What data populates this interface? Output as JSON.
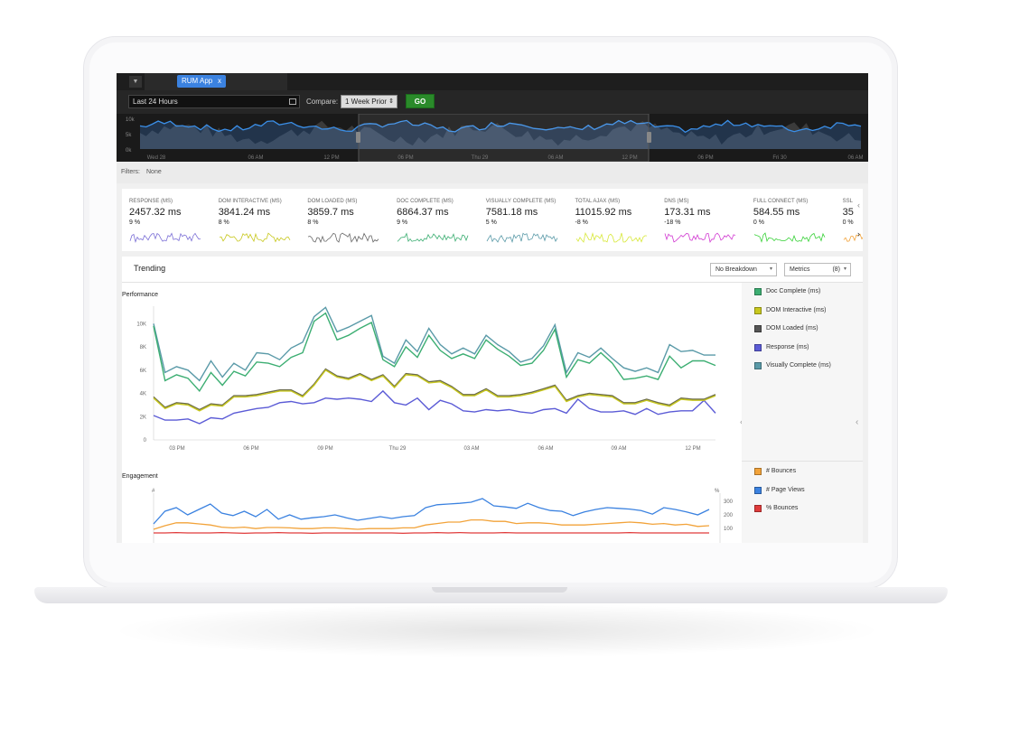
{
  "tabs": [
    {
      "label": "RUM App",
      "close": "x"
    }
  ],
  "time_range": {
    "value": "Last 24 Hours"
  },
  "compare": {
    "label": "Compare:",
    "value": "1 Week Prior"
  },
  "go_label": "GO",
  "overview": {
    "y_ticks": [
      "10k",
      "5k",
      "0k"
    ],
    "x_ticks": [
      "Wed 28",
      "06 AM",
      "12 PM",
      "06 PM",
      "Thu 29",
      "06 AM",
      "12 PM",
      "06 PM",
      "Fri 30",
      "06 AM"
    ]
  },
  "filters": {
    "label": "Filters:",
    "value": "None"
  },
  "kpis": [
    {
      "label": "RESPONSE (MS)",
      "value": "2457.32 ms",
      "change": "9 %",
      "color": "#7b6fd6"
    },
    {
      "label": "DOM INTERACTIVE (MS)",
      "value": "3841.24 ms",
      "change": "8 %",
      "color": "#c8c81e"
    },
    {
      "label": "DOM LOADED (MS)",
      "value": "3859.7 ms",
      "change": "8 %",
      "color": "#666666"
    },
    {
      "label": "DOC COMPLETE (MS)",
      "value": "6864.37 ms",
      "change": "9 %",
      "color": "#3cae72"
    },
    {
      "label": "VISUALLY COMPLETE (MS)",
      "value": "7581.18 ms",
      "change": "5 %",
      "color": "#5a9aa8"
    },
    {
      "label": "TOTAL AJAX (MS)",
      "value": "11015.92 ms",
      "change": "-8 %",
      "color": "#d8e83a"
    },
    {
      "label": "DNS (MS)",
      "value": "173.31 ms",
      "change": "-18 %",
      "color": "#d23ad2"
    },
    {
      "label": "FULL CONNECT (MS)",
      "value": "584.55 ms",
      "change": "0 %",
      "color": "#3ad23a"
    },
    {
      "label": "SSL",
      "value": "35",
      "change": "0 %",
      "color": "#f2a33a"
    }
  ],
  "trending": {
    "title": "Trending",
    "breakdown": "No Breakdown",
    "metrics_label": "Metrics",
    "metrics_count": "(8)"
  },
  "performance": {
    "title": "Performance",
    "legend": [
      {
        "name": "Doc Complete (ms)",
        "color": "#3cae72"
      },
      {
        "name": "DOM Interactive (ms)",
        "color": "#c8c81e"
      },
      {
        "name": "DOM Loaded (ms)",
        "color": "#555555"
      },
      {
        "name": "Response (ms)",
        "color": "#5b5bd6"
      },
      {
        "name": "Visually Complete (ms)",
        "color": "#5a9aa8"
      }
    ]
  },
  "engagement": {
    "title": "Engagement",
    "left_unit": "#",
    "right_unit": "%",
    "legend": [
      {
        "name": "# Bounces",
        "color": "#f2a33a"
      },
      {
        "name": "# Page Views",
        "color": "#3b82e0"
      },
      {
        "name": "% Bounces",
        "color": "#e03b3b"
      }
    ]
  },
  "chart_data": [
    {
      "type": "line",
      "title": "Performance",
      "x_ticks": [
        "03 PM",
        "06 PM",
        "09 PM",
        "Thu 29",
        "03 AM",
        "06 AM",
        "09 AM",
        "12 PM"
      ],
      "y_ticks": [
        "0",
        "2K",
        "4K",
        "6K",
        "8K",
        "10K"
      ],
      "ylim": [
        0,
        11500
      ],
      "series": [
        {
          "name": "Visually Complete (ms)",
          "color": "#5a9aa8",
          "values": [
            10000,
            5800,
            6300,
            6000,
            5100,
            6800,
            5400,
            6600,
            6000,
            7500,
            7400,
            6900,
            7900,
            8400,
            10600,
            11400,
            9300,
            9700,
            10200,
            10700,
            7200,
            6600,
            8600,
            7600,
            9600,
            8200,
            7400,
            7900,
            7400,
            9000,
            8200,
            7600,
            6700,
            7000,
            8100,
            9900,
            5800,
            7500,
            7100,
            7900,
            7000,
            6200,
            5900,
            6200,
            5800,
            8200,
            7600,
            7700,
            7300,
            7300
          ]
        },
        {
          "name": "Doc Complete (ms)",
          "color": "#3cae72",
          "values": [
            9800,
            5100,
            5600,
            5300,
            4200,
            5800,
            4700,
            5900,
            5500,
            6700,
            6600,
            6300,
            7100,
            7500,
            10200,
            10900,
            8600,
            9000,
            9600,
            10100,
            6900,
            6300,
            8000,
            7100,
            9000,
            7700,
            7000,
            7400,
            7000,
            8600,
            7800,
            7200,
            6400,
            6600,
            7700,
            9500,
            5400,
            6900,
            6600,
            7500,
            6600,
            5200,
            5300,
            5500,
            5200,
            7200,
            6200,
            6800,
            6800,
            6400
          ]
        },
        {
          "name": "DOM Loaded (ms)",
          "color": "#6b6b4a",
          "values": [
            3700,
            2800,
            3200,
            3100,
            2600,
            3100,
            3000,
            3800,
            3800,
            3900,
            4100,
            4300,
            4300,
            3800,
            4800,
            6100,
            5500,
            5300,
            5700,
            5200,
            5600,
            4600,
            5700,
            5600,
            5000,
            5100,
            4600,
            3900,
            3900,
            4400,
            3800,
            3800,
            3900,
            4100,
            4400,
            4700,
            3400,
            3800,
            4000,
            3900,
            3800,
            3200,
            3200,
            3500,
            3200,
            3000,
            3600,
            3500,
            3500,
            3900
          ]
        },
        {
          "name": "Response (ms)",
          "color": "#5b5bd6",
          "values": [
            2100,
            1700,
            1700,
            1800,
            1400,
            1900,
            1800,
            2300,
            2500,
            2700,
            2800,
            3200,
            3300,
            3100,
            3200,
            3600,
            3500,
            3600,
            3500,
            3300,
            4200,
            3200,
            3000,
            3600,
            2600,
            3400,
            3100,
            2500,
            2400,
            2600,
            2500,
            2600,
            2400,
            2300,
            2600,
            2700,
            2300,
            3500,
            2700,
            2400,
            2400,
            2500,
            2200,
            2700,
            2200,
            2400,
            2500,
            2500,
            3400,
            2300
          ]
        },
        {
          "name": "DOM Interactive (ms)",
          "color": "#c8c81e",
          "values": [
            3600,
            2700,
            3100,
            3000,
            2500,
            3000,
            2900,
            3700,
            3700,
            3800,
            4000,
            4200,
            4200,
            3700,
            4700,
            6000,
            5400,
            5200,
            5600,
            5100,
            5500,
            4500,
            5600,
            5500,
            4900,
            5000,
            4500,
            3800,
            3800,
            4300,
            3700,
            3700,
            3800,
            4000,
            4300,
            4600,
            3300,
            3700,
            3900,
            3800,
            3700,
            3100,
            3100,
            3400,
            3100,
            2900,
            3500,
            3400,
            3400,
            3800
          ]
        }
      ]
    },
    {
      "type": "line",
      "title": "Engagement",
      "y2_ticks": [
        "300",
        "200",
        "100"
      ],
      "series": [
        {
          "name": "# Page Views",
          "color": "#3b82e0",
          "values": [
            55,
            90,
            100,
            80,
            95,
            110,
            85,
            78,
            90,
            75,
            95,
            68,
            80,
            68,
            72,
            75,
            80,
            72,
            65,
            70,
            75,
            70,
            75,
            78,
            100,
            108,
            110,
            112,
            115,
            125,
            105,
            102,
            98,
            112,
            100,
            92,
            90,
            78,
            88,
            95,
            100,
            98,
            96,
            92,
            82,
            100,
            95,
            88,
            80,
            95
          ]
        },
        {
          "name": "# Bounces",
          "color": "#f2a33a",
          "values": [
            40,
            50,
            58,
            58,
            55,
            52,
            46,
            44,
            46,
            42,
            45,
            45,
            44,
            42,
            42,
            44,
            44,
            42,
            40,
            42,
            42,
            42,
            44,
            44,
            52,
            56,
            60,
            60,
            66,
            66,
            62,
            62,
            56,
            58,
            58,
            56,
            52,
            52,
            52,
            54,
            56,
            58,
            60,
            58,
            54,
            56,
            52,
            54,
            48,
            50
          ]
        },
        {
          "name": "% Bounces",
          "color": "#e03b3b",
          "values": [
            30,
            30,
            31,
            30,
            30,
            30,
            31,
            30,
            29,
            30,
            30,
            31,
            30,
            30,
            29,
            30,
            30,
            30,
            30,
            30,
            30,
            30,
            29,
            30,
            30,
            31,
            30,
            31,
            30,
            30,
            30,
            31,
            30,
            30,
            30,
            30,
            30,
            30,
            30,
            30,
            30,
            30,
            31,
            30,
            30,
            30,
            30,
            30,
            30,
            30
          ]
        }
      ]
    }
  ]
}
